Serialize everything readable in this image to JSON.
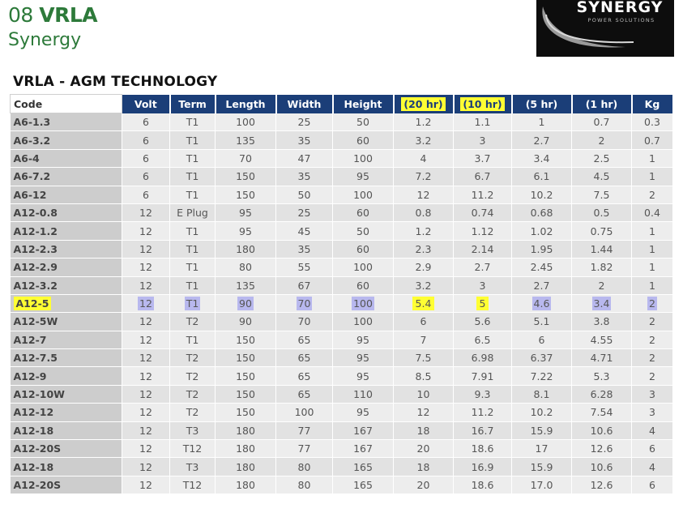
{
  "header": {
    "number": "08",
    "title": "VRLA",
    "subtitle": "Synergy"
  },
  "logo": {
    "name": "SYNERGY",
    "tagline": "POWER SOLUTIONS"
  },
  "section_title": "VRLA - AGM TECHNOLOGY",
  "table": {
    "columns": [
      "Code",
      "Volt",
      "Term",
      "Length",
      "Width",
      "Height",
      "(20 hr)",
      "(10 hr)",
      "(5 hr)",
      "(1 hr)",
      "Kg"
    ],
    "rows": [
      [
        "A6-1.3",
        "6",
        "T1",
        "100",
        "25",
        "50",
        "1.2",
        "1.1",
        "1",
        "0.7",
        "0.3"
      ],
      [
        "A6-3.2",
        "6",
        "T1",
        "135",
        "35",
        "60",
        "3.2",
        "3",
        "2.7",
        "2",
        "0.7"
      ],
      [
        "A6-4",
        "6",
        "T1",
        "70",
        "47",
        "100",
        "4",
        "3.7",
        "3.4",
        "2.5",
        "1"
      ],
      [
        "A6-7.2",
        "6",
        "T1",
        "150",
        "35",
        "95",
        "7.2",
        "6.7",
        "6.1",
        "4.5",
        "1"
      ],
      [
        "A6-12",
        "6",
        "T1",
        "150",
        "50",
        "100",
        "12",
        "11.2",
        "10.2",
        "7.5",
        "2"
      ],
      [
        "A12-0.8",
        "12",
        "E Plug",
        "95",
        "25",
        "60",
        "0.8",
        "0.74",
        "0.68",
        "0.5",
        "0.4"
      ],
      [
        "A12-1.2",
        "12",
        "T1",
        "95",
        "45",
        "50",
        "1.2",
        "1.12",
        "1.02",
        "0.75",
        "1"
      ],
      [
        "A12-2.3",
        "12",
        "T1",
        "180",
        "35",
        "60",
        "2.3",
        "2.14",
        "1.95",
        "1.44",
        "1"
      ],
      [
        "A12-2.9",
        "12",
        "T1",
        "80",
        "55",
        "100",
        "2.9",
        "2.7",
        "2.45",
        "1.82",
        "1"
      ],
      [
        "A12-3.2",
        "12",
        "T1",
        "135",
        "67",
        "60",
        "3.2",
        "3",
        "2.7",
        "2",
        "1"
      ],
      [
        "A12-5",
        "12",
        "T1",
        "90",
        "70",
        "100",
        "5.4",
        "5",
        "4.6",
        "3.4",
        "2"
      ],
      [
        "A12-5W",
        "12",
        "T2",
        "90",
        "70",
        "100",
        "6",
        "5.6",
        "5.1",
        "3.8",
        "2"
      ],
      [
        "A12-7",
        "12",
        "T1",
        "150",
        "65",
        "95",
        "7",
        "6.5",
        "6",
        "4.55",
        "2"
      ],
      [
        "A12-7.5",
        "12",
        "T2",
        "150",
        "65",
        "95",
        "7.5",
        "6.98",
        "6.37",
        "4.71",
        "2"
      ],
      [
        "A12-9",
        "12",
        "T2",
        "150",
        "65",
        "95",
        "8.5",
        "7.91",
        "7.22",
        "5.3",
        "2"
      ],
      [
        "A12-10W",
        "12",
        "T2",
        "150",
        "65",
        "110",
        "10",
        "9.3",
        "8.1",
        "6.28",
        "3"
      ],
      [
        "A12-12",
        "12",
        "T2",
        "150",
        "100",
        "95",
        "12",
        "11.2",
        "10.2",
        "7.54",
        "3"
      ],
      [
        "A12-18",
        "12",
        "T3",
        "180",
        "77",
        "167",
        "18",
        "16.7",
        "15.9",
        "10.6",
        "4"
      ],
      [
        "A12-20S",
        "12",
        "T12",
        "180",
        "77",
        "167",
        "20",
        "18.6",
        "17",
        "12.6",
        "6"
      ],
      [
        "A12-18",
        "12",
        "T3",
        "180",
        "80",
        "165",
        "18",
        "16.9",
        "15.9",
        "10.6",
        "4"
      ],
      [
        "A12-20S",
        "12",
        "T12",
        "180",
        "80",
        "165",
        "20",
        "18.6",
        "17.0",
        "12.6",
        "6"
      ]
    ],
    "highlighted_row": "A12-5"
  },
  "colors": {
    "brand_green": "#2d7a3a",
    "header_blue": "#1b3e78",
    "highlight_yellow": "#ffff33",
    "highlight_purple": "#b8b8ee"
  }
}
